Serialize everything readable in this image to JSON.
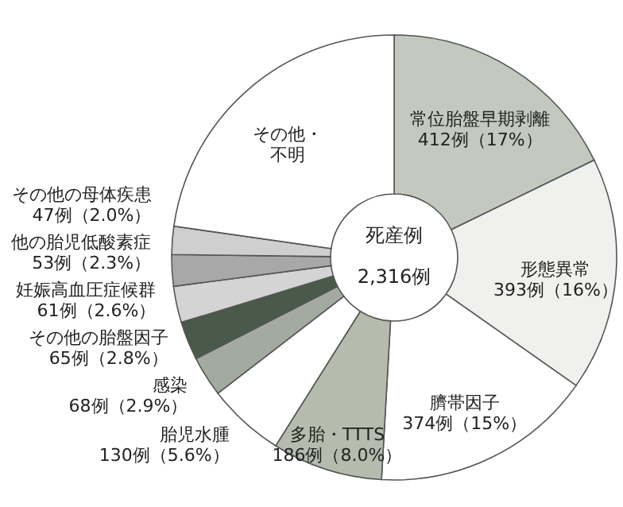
{
  "chart_data": {
    "type": "donut",
    "title": "死産例",
    "subtitle": "2,316例",
    "categories": [
      "常位胎盤早期剥離",
      "形態異常",
      "臍帯因子",
      "多胎・TTTS",
      "胎児水腫",
      "感染",
      "その他の胎盤因子",
      "妊娠高血圧症候群",
      "他の胎児低酸素症",
      "その他の母体疾患",
      "その他・不明"
    ],
    "values": [
      412,
      393,
      374,
      186,
      130,
      68,
      65,
      61,
      53,
      47,
      527
    ],
    "value_labels": [
      "412例（17%）",
      "393例（16%）",
      "374例（15%）",
      "186例（8.0%）",
      "130例（5.6%）",
      "68例（2.9%）",
      "65例（2.8%）",
      "61例（2.6%）",
      "53例（2.3%）",
      "47例（2.0%）",
      null
    ],
    "colors": [
      "#c4c9bf",
      "#f0f0ee",
      "#ffffff",
      "#b5bcad",
      "#ffffff",
      "#a3aba0",
      "#4a5a4a",
      "#d4d4d4",
      "#a8a8a8",
      "#cfcfcf",
      "#ffffff"
    ]
  }
}
